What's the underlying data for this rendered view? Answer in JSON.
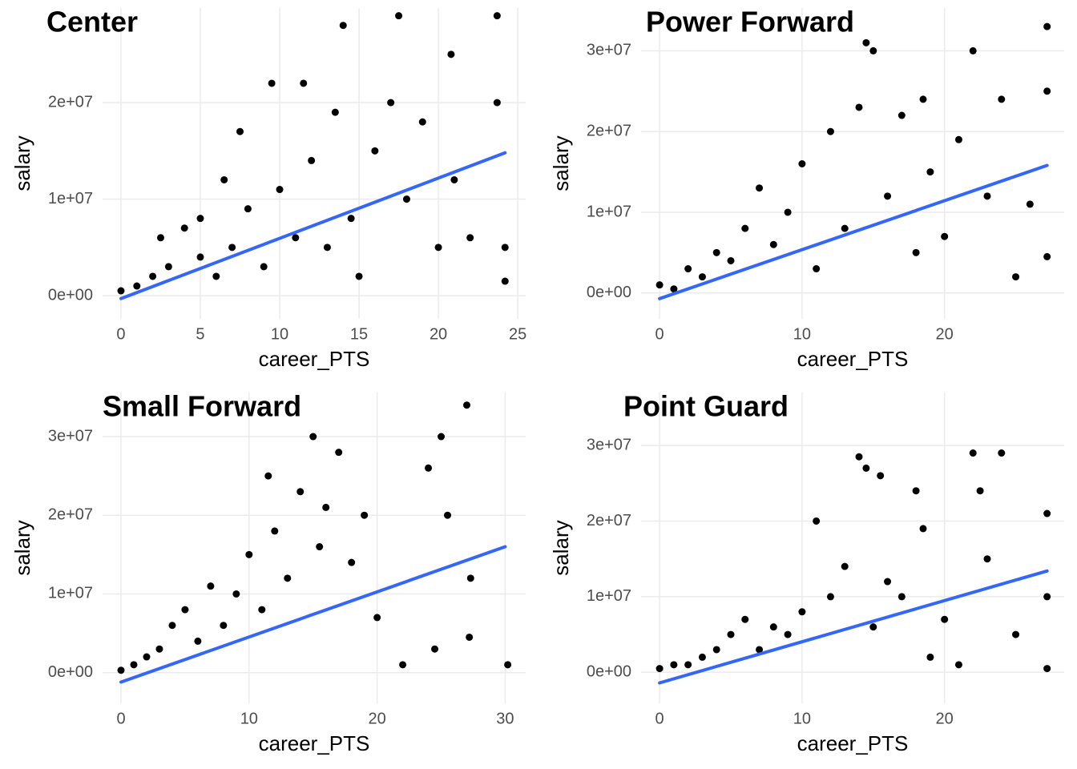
{
  "chart_data": [
    {
      "type": "scatter",
      "title": "Center",
      "x_label": "career_PTS",
      "y_label": "salary",
      "color": "#000000",
      "grid": true,
      "xlim": [
        -1.16,
        25.5
      ],
      "ylim": [
        -2400000,
        29800000
      ],
      "xticks": [
        0,
        5,
        10,
        15,
        20,
        25
      ],
      "yticks": [
        {
          "value": 0,
          "label": "0e+00"
        },
        {
          "value": 10000000,
          "label": "1e+07"
        },
        {
          "value": 20000000,
          "label": "2e+07"
        }
      ],
      "x": [
        0,
        1,
        2,
        2.5,
        3,
        4,
        5,
        5,
        6,
        6.5,
        7,
        7.5,
        8,
        9,
        9.5,
        10,
        11,
        11.5,
        12,
        13,
        13.5,
        14,
        14.5,
        15,
        16,
        17,
        17.5,
        18,
        19,
        20,
        20.8,
        21,
        22,
        23.7,
        23.7,
        24.2,
        24.2
      ],
      "values": [
        500000,
        1000000,
        2000000,
        6000000,
        3000000,
        7000000,
        4000000,
        8000000,
        2000000,
        12000000,
        5000000,
        17000000,
        9000000,
        3000000,
        22000000,
        11000000,
        6000000,
        22000000,
        14000000,
        5000000,
        19000000,
        28000000,
        8000000,
        2000000,
        15000000,
        20000000,
        29000000,
        10000000,
        18000000,
        5000000,
        25000000,
        12000000,
        6000000,
        29000000,
        20000000,
        5000000,
        1500000
      ],
      "fit": {
        "color": "#3366ff",
        "x": [
          0,
          24.2
        ],
        "values": [
          -300000,
          14800000
        ]
      }
    },
    {
      "type": "scatter",
      "title": "Power Forward",
      "x_label": "career_PTS",
      "y_label": "salary",
      "color": "#000000",
      "grid": true,
      "xlim": [
        -1.3,
        28.4
      ],
      "ylim": [
        -3200000,
        35300000
      ],
      "xticks": [
        0,
        10,
        20
      ],
      "yticks": [
        {
          "value": 0,
          "label": "0e+00"
        },
        {
          "value": 10000000,
          "label": "1e+07"
        },
        {
          "value": 20000000,
          "label": "2e+07"
        },
        {
          "value": 30000000,
          "label": "3e+07"
        }
      ],
      "x": [
        0,
        1,
        2,
        3,
        4,
        5,
        6,
        7,
        8,
        9,
        10,
        11,
        12,
        13,
        14,
        14.5,
        15,
        16,
        17,
        18,
        18.5,
        19,
        20,
        21,
        22,
        23,
        24,
        25,
        26,
        27.2,
        27.2,
        27.2
      ],
      "values": [
        1000000,
        500000,
        3000000,
        2000000,
        5000000,
        4000000,
        8000000,
        13000000,
        6000000,
        10000000,
        16000000,
        3000000,
        20000000,
        8000000,
        23000000,
        31000000,
        30000000,
        12000000,
        22000000,
        5000000,
        24000000,
        15000000,
        7000000,
        19000000,
        30000000,
        12000000,
        24000000,
        2000000,
        11000000,
        33000000,
        25000000,
        4500000
      ],
      "fit": {
        "color": "#3366ff",
        "x": [
          0,
          27.2
        ],
        "values": [
          -700000,
          15800000
        ]
      }
    },
    {
      "type": "scatter",
      "title": "Small Forward",
      "x_label": "career_PTS",
      "y_label": "salary",
      "color": "#000000",
      "grid": true,
      "xlim": [
        -1.44,
        31.6
      ],
      "ylim": [
        -3900000,
        35600000
      ],
      "xticks": [
        0,
        10,
        20,
        30
      ],
      "yticks": [
        {
          "value": 0,
          "label": "0e+00"
        },
        {
          "value": 10000000,
          "label": "1e+07"
        },
        {
          "value": 20000000,
          "label": "2e+07"
        },
        {
          "value": 30000000,
          "label": "3e+07"
        }
      ],
      "x": [
        0,
        1,
        2,
        3,
        4,
        5,
        6,
        7,
        8,
        9,
        10,
        11,
        11.5,
        12,
        13,
        14,
        15,
        15.5,
        16,
        17,
        18,
        19,
        20,
        22,
        24,
        24.5,
        25,
        25.5,
        27,
        27.3,
        27.2,
        30.2
      ],
      "values": [
        300000,
        1000000,
        2000000,
        3000000,
        6000000,
        8000000,
        4000000,
        11000000,
        6000000,
        10000000,
        15000000,
        8000000,
        25000000,
        18000000,
        12000000,
        23000000,
        30000000,
        16000000,
        21000000,
        28000000,
        14000000,
        20000000,
        7000000,
        1000000,
        26000000,
        3000000,
        30000000,
        20000000,
        34000000,
        12000000,
        4500000,
        1000000
      ],
      "fit": {
        "color": "#3366ff",
        "x": [
          0,
          30
        ],
        "values": [
          -1200000,
          16000000
        ]
      }
    },
    {
      "type": "scatter",
      "title": "Point Guard",
      "x_label": "career_PTS",
      "y_label": "salary",
      "color": "#000000",
      "grid": true,
      "xlim": [
        -1.3,
        28.4
      ],
      "ylim": [
        -4100000,
        37000000
      ],
      "xticks": [
        0,
        10,
        20
      ],
      "yticks": [
        {
          "value": 0,
          "label": "0e+00"
        },
        {
          "value": 10000000,
          "label": "1e+07"
        },
        {
          "value": 20000000,
          "label": "2e+07"
        },
        {
          "value": 30000000,
          "label": "3e+07"
        }
      ],
      "x": [
        0,
        1,
        2,
        3,
        4,
        5,
        6,
        7,
        8,
        9,
        10,
        11,
        12,
        13,
        14,
        14.5,
        15,
        15.5,
        16,
        17,
        18,
        18.5,
        19,
        20,
        21,
        22,
        22.5,
        23,
        24,
        25,
        27.2,
        27.2,
        27.2
      ],
      "values": [
        500000,
        1000000,
        1000000,
        2000000,
        3000000,
        5000000,
        7000000,
        3000000,
        6000000,
        5000000,
        8000000,
        20000000,
        10000000,
        14000000,
        28500000,
        27000000,
        6000000,
        26000000,
        12000000,
        10000000,
        24000000,
        19000000,
        2000000,
        7000000,
        1000000,
        29000000,
        24000000,
        15000000,
        29000000,
        5000000,
        21000000,
        10000000,
        500000
      ],
      "fit": {
        "color": "#3366ff",
        "x": [
          0,
          27.2
        ],
        "values": [
          -1400000,
          13400000
        ]
      }
    }
  ]
}
